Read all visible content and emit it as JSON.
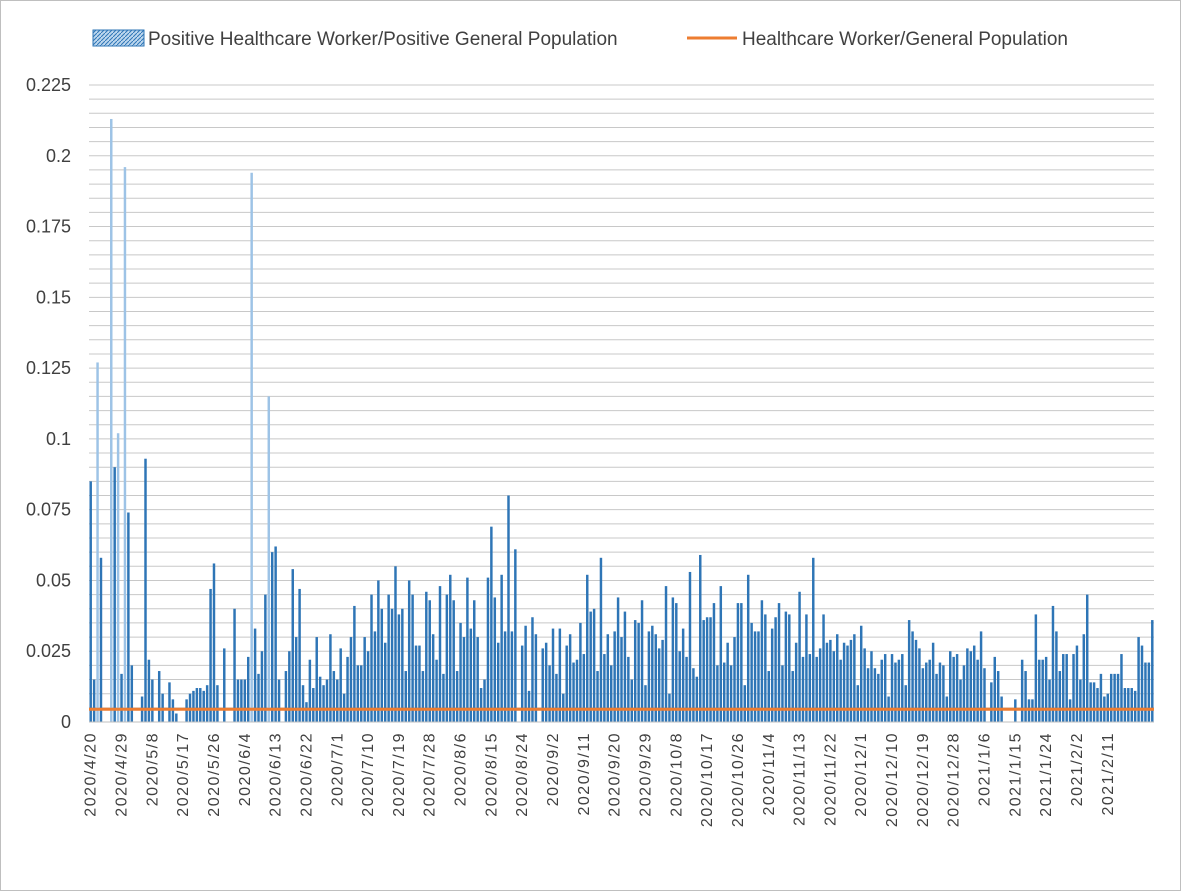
{
  "chart_data": {
    "type": "bar",
    "title": "",
    "xlabel": "",
    "ylabel": "",
    "ylim": [
      0,
      0.225
    ],
    "y_ticks": [
      "0",
      "0.025",
      "0.05",
      "0.075",
      "0.1",
      "0.125",
      "0.15",
      "0.175",
      "0.2",
      "0.225"
    ],
    "grid": true,
    "legend_position": "top",
    "x_tick_labels": [
      "2020/4/20",
      "2020/4/29",
      "2020/5/8",
      "2020/5/17",
      "2020/5/26",
      "2020/6/4",
      "2020/6/13",
      "2020/6/22",
      "2020/7/1",
      "2020/7/10",
      "2020/7/19",
      "2020/7/28",
      "2020/8/6",
      "2020/8/15",
      "2020/8/24",
      "2020/9/2",
      "2020/9/11",
      "2020/9/20",
      "2020/9/29",
      "2020/10/8",
      "2020/10/17",
      "2020/10/26",
      "2020/11/4",
      "2020/11/13",
      "2020/11/22",
      "2020/12/1",
      "2020/12/10",
      "2020/12/19",
      "2020/12/28",
      "2021/1/6",
      "2021/1/15",
      "2021/1/24",
      "2021/2/2",
      "2021/2/11"
    ],
    "colors": {
      "bar": "#2e75b6",
      "bar_light": "#9dc3e6",
      "line": "#ed7d31",
      "grid": "#c8c8c8"
    },
    "series": [
      {
        "name": "Positive Healthcare Worker/Positive General Population",
        "kind": "bar",
        "start_date": "2020/4/20",
        "values": [
          0.085,
          0.015,
          0.127,
          0.058,
          0,
          0,
          0.213,
          0.09,
          0.102,
          0.017,
          0.196,
          0.074,
          0.02,
          0,
          0,
          0.009,
          0.093,
          0.022,
          0.015,
          0,
          0.018,
          0.01,
          0,
          0.014,
          0.008,
          0.003,
          0,
          0,
          0.008,
          0.01,
          0.011,
          0.012,
          0.012,
          0.011,
          0.013,
          0.047,
          0.056,
          0.013,
          0,
          0.026,
          0,
          0,
          0.04,
          0.015,
          0.015,
          0.015,
          0.023,
          0.194,
          0.033,
          0.017,
          0.025,
          0.045,
          0.115,
          0.06,
          0.062,
          0.015,
          0,
          0.018,
          0.025,
          0.054,
          0.03,
          0.047,
          0.013,
          0.007,
          0.022,
          0.012,
          0.03,
          0.016,
          0.013,
          0.015,
          0.031,
          0.018,
          0.015,
          0.026,
          0.01,
          0.023,
          0.03,
          0.041,
          0.02,
          0.02,
          0.03,
          0.025,
          0.045,
          0.032,
          0.05,
          0.04,
          0.028,
          0.045,
          0.04,
          0.055,
          0.038,
          0.04,
          0.018,
          0.05,
          0.045,
          0.027,
          0.027,
          0.018,
          0.046,
          0.043,
          0.031,
          0.022,
          0.048,
          0.017,
          0.045,
          0.052,
          0.043,
          0.018,
          0.035,
          0.03,
          0.051,
          0.033,
          0.043,
          0.03,
          0.012,
          0.015,
          0.051,
          0.069,
          0.044,
          0.028,
          0.052,
          0.032,
          0.08,
          0.032,
          0.061,
          0,
          0.027,
          0.034,
          0.011,
          0.037,
          0.031,
          0,
          0.026,
          0.028,
          0.02,
          0.033,
          0.017,
          0.033,
          0.01,
          0.027,
          0.031,
          0.021,
          0.022,
          0.035,
          0.024,
          0.052,
          0.039,
          0.04,
          0.018,
          0.058,
          0.024,
          0.031,
          0.02,
          0.032,
          0.044,
          0.03,
          0.039,
          0.023,
          0.015,
          0.036,
          0.035,
          0.043,
          0.013,
          0.032,
          0.034,
          0.031,
          0.026,
          0.029,
          0.048,
          0.01,
          0.044,
          0.042,
          0.025,
          0.033,
          0.023,
          0.053,
          0.019,
          0.016,
          0.059,
          0.036,
          0.037,
          0.037,
          0.042,
          0.02,
          0.048,
          0.021,
          0.028,
          0.02,
          0.03,
          0.042,
          0.042,
          0.013,
          0.052,
          0.035,
          0.032,
          0.032,
          0.043,
          0.038,
          0.018,
          0.033,
          0.037,
          0.042,
          0.02,
          0.039,
          0.038,
          0.018,
          0.028,
          0.046,
          0.023,
          0.038,
          0.024,
          0.058,
          0.023,
          0.026,
          0.038,
          0.028,
          0.029,
          0.025,
          0.031,
          0.022,
          0.028,
          0.027,
          0.029,
          0.031,
          0.013,
          0.034,
          0.026,
          0.019,
          0.025,
          0.019,
          0.017,
          0.022,
          0.024,
          0.009,
          0.024,
          0.021,
          0.022,
          0.024,
          0.013,
          0.036,
          0.032,
          0.029,
          0.026,
          0.019,
          0.021,
          0.022,
          0.028,
          0.017,
          0.021,
          0.02,
          0.009,
          0.025,
          0.023,
          0.024,
          0.015,
          0.02,
          0.026,
          0.025,
          0.027,
          0.022,
          0.032,
          0.019,
          0,
          0.014,
          0.023,
          0.018,
          0.009,
          0,
          0,
          0,
          0.008,
          0,
          0.022,
          0.018,
          0.008,
          0.008,
          0.038,
          0.022,
          0.022,
          0.023,
          0.015,
          0.041,
          0.032,
          0.018,
          0.024,
          0.024,
          0.008,
          0.024,
          0.027,
          0.015,
          0.031,
          0.045,
          0.014,
          0.014,
          0.012,
          0.017,
          0.009,
          0.01,
          0.017,
          0.017,
          0.017,
          0.024,
          0.012,
          0.012,
          0.012,
          0.011,
          0.03,
          0.027,
          0.021,
          0.021,
          0.036
        ]
      },
      {
        "name": "Healthcare Worker/General Population",
        "kind": "line",
        "value": 0.0045
      }
    ]
  }
}
